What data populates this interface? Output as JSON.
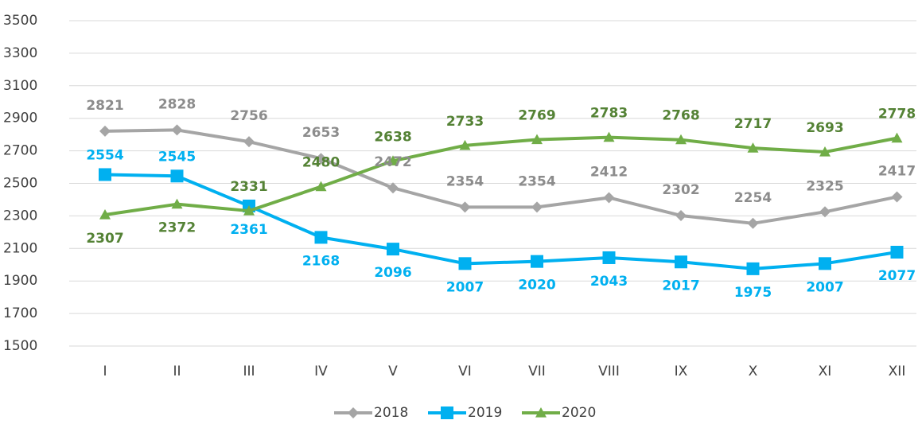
{
  "chart_data": {
    "type": "line",
    "categories": [
      "I",
      "II",
      "III",
      "IV",
      "V",
      "VI",
      "VII",
      "VIII",
      "IX",
      "X",
      "XI",
      "XII"
    ],
    "series": [
      {
        "name": "2018",
        "color": "#a5a5a5",
        "marker": "diamond",
        "values": [
          2821,
          2828,
          2756,
          2653,
          2472,
          2354,
          2354,
          2412,
          2302,
          2254,
          2325,
          2417
        ]
      },
      {
        "name": "2019",
        "color": "#00b0f0",
        "marker": "square",
        "values": [
          2554,
          2545,
          2361,
          2168,
          2096,
          2007,
          2020,
          2043,
          2017,
          1975,
          2007,
          2077
        ]
      },
      {
        "name": "2020",
        "color": "#70ad47",
        "marker": "triangle",
        "values": [
          2307,
          2372,
          2331,
          2480,
          2638,
          2733,
          2769,
          2783,
          2768,
          2717,
          2693,
          2778
        ]
      }
    ],
    "ylim": [
      1500,
      3500
    ],
    "yticks": [
      1500,
      1700,
      1900,
      2100,
      2300,
      2500,
      2700,
      2900,
      3100,
      3300,
      3500
    ],
    "grid": true,
    "legend": "bottom"
  }
}
